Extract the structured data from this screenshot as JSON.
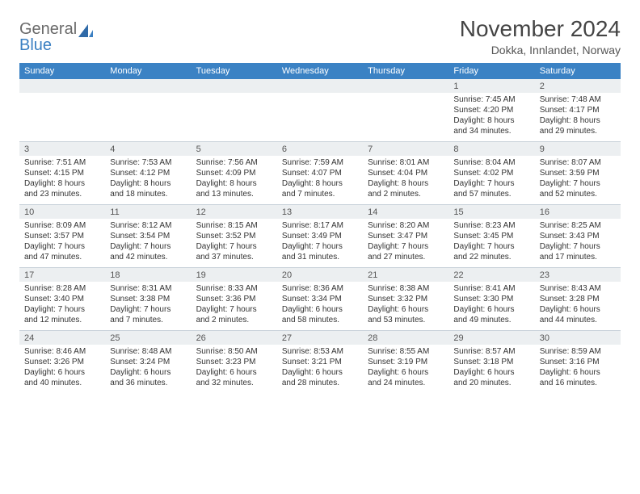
{
  "brand": {
    "word1": "General",
    "word2": "Blue"
  },
  "title": "November 2024",
  "location": "Dokka, Innlandet, Norway",
  "colors": {
    "header_bg": "#3b82c4",
    "header_text": "#ffffff",
    "daynum_bg": "#eceff1",
    "border": "#c9d2da",
    "text": "#333333"
  },
  "weekdays": [
    "Sunday",
    "Monday",
    "Tuesday",
    "Wednesday",
    "Thursday",
    "Friday",
    "Saturday"
  ],
  "weeks": [
    [
      {
        "n": "",
        "sunrise": "",
        "sunset": "",
        "daylight": ""
      },
      {
        "n": "",
        "sunrise": "",
        "sunset": "",
        "daylight": ""
      },
      {
        "n": "",
        "sunrise": "",
        "sunset": "",
        "daylight": ""
      },
      {
        "n": "",
        "sunrise": "",
        "sunset": "",
        "daylight": ""
      },
      {
        "n": "",
        "sunrise": "",
        "sunset": "",
        "daylight": ""
      },
      {
        "n": "1",
        "sunrise": "Sunrise: 7:45 AM",
        "sunset": "Sunset: 4:20 PM",
        "daylight": "Daylight: 8 hours and 34 minutes."
      },
      {
        "n": "2",
        "sunrise": "Sunrise: 7:48 AM",
        "sunset": "Sunset: 4:17 PM",
        "daylight": "Daylight: 8 hours and 29 minutes."
      }
    ],
    [
      {
        "n": "3",
        "sunrise": "Sunrise: 7:51 AM",
        "sunset": "Sunset: 4:15 PM",
        "daylight": "Daylight: 8 hours and 23 minutes."
      },
      {
        "n": "4",
        "sunrise": "Sunrise: 7:53 AM",
        "sunset": "Sunset: 4:12 PM",
        "daylight": "Daylight: 8 hours and 18 minutes."
      },
      {
        "n": "5",
        "sunrise": "Sunrise: 7:56 AM",
        "sunset": "Sunset: 4:09 PM",
        "daylight": "Daylight: 8 hours and 13 minutes."
      },
      {
        "n": "6",
        "sunrise": "Sunrise: 7:59 AM",
        "sunset": "Sunset: 4:07 PM",
        "daylight": "Daylight: 8 hours and 7 minutes."
      },
      {
        "n": "7",
        "sunrise": "Sunrise: 8:01 AM",
        "sunset": "Sunset: 4:04 PM",
        "daylight": "Daylight: 8 hours and 2 minutes."
      },
      {
        "n": "8",
        "sunrise": "Sunrise: 8:04 AM",
        "sunset": "Sunset: 4:02 PM",
        "daylight": "Daylight: 7 hours and 57 minutes."
      },
      {
        "n": "9",
        "sunrise": "Sunrise: 8:07 AM",
        "sunset": "Sunset: 3:59 PM",
        "daylight": "Daylight: 7 hours and 52 minutes."
      }
    ],
    [
      {
        "n": "10",
        "sunrise": "Sunrise: 8:09 AM",
        "sunset": "Sunset: 3:57 PM",
        "daylight": "Daylight: 7 hours and 47 minutes."
      },
      {
        "n": "11",
        "sunrise": "Sunrise: 8:12 AM",
        "sunset": "Sunset: 3:54 PM",
        "daylight": "Daylight: 7 hours and 42 minutes."
      },
      {
        "n": "12",
        "sunrise": "Sunrise: 8:15 AM",
        "sunset": "Sunset: 3:52 PM",
        "daylight": "Daylight: 7 hours and 37 minutes."
      },
      {
        "n": "13",
        "sunrise": "Sunrise: 8:17 AM",
        "sunset": "Sunset: 3:49 PM",
        "daylight": "Daylight: 7 hours and 31 minutes."
      },
      {
        "n": "14",
        "sunrise": "Sunrise: 8:20 AM",
        "sunset": "Sunset: 3:47 PM",
        "daylight": "Daylight: 7 hours and 27 minutes."
      },
      {
        "n": "15",
        "sunrise": "Sunrise: 8:23 AM",
        "sunset": "Sunset: 3:45 PM",
        "daylight": "Daylight: 7 hours and 22 minutes."
      },
      {
        "n": "16",
        "sunrise": "Sunrise: 8:25 AM",
        "sunset": "Sunset: 3:43 PM",
        "daylight": "Daylight: 7 hours and 17 minutes."
      }
    ],
    [
      {
        "n": "17",
        "sunrise": "Sunrise: 8:28 AM",
        "sunset": "Sunset: 3:40 PM",
        "daylight": "Daylight: 7 hours and 12 minutes."
      },
      {
        "n": "18",
        "sunrise": "Sunrise: 8:31 AM",
        "sunset": "Sunset: 3:38 PM",
        "daylight": "Daylight: 7 hours and 7 minutes."
      },
      {
        "n": "19",
        "sunrise": "Sunrise: 8:33 AM",
        "sunset": "Sunset: 3:36 PM",
        "daylight": "Daylight: 7 hours and 2 minutes."
      },
      {
        "n": "20",
        "sunrise": "Sunrise: 8:36 AM",
        "sunset": "Sunset: 3:34 PM",
        "daylight": "Daylight: 6 hours and 58 minutes."
      },
      {
        "n": "21",
        "sunrise": "Sunrise: 8:38 AM",
        "sunset": "Sunset: 3:32 PM",
        "daylight": "Daylight: 6 hours and 53 minutes."
      },
      {
        "n": "22",
        "sunrise": "Sunrise: 8:41 AM",
        "sunset": "Sunset: 3:30 PM",
        "daylight": "Daylight: 6 hours and 49 minutes."
      },
      {
        "n": "23",
        "sunrise": "Sunrise: 8:43 AM",
        "sunset": "Sunset: 3:28 PM",
        "daylight": "Daylight: 6 hours and 44 minutes."
      }
    ],
    [
      {
        "n": "24",
        "sunrise": "Sunrise: 8:46 AM",
        "sunset": "Sunset: 3:26 PM",
        "daylight": "Daylight: 6 hours and 40 minutes."
      },
      {
        "n": "25",
        "sunrise": "Sunrise: 8:48 AM",
        "sunset": "Sunset: 3:24 PM",
        "daylight": "Daylight: 6 hours and 36 minutes."
      },
      {
        "n": "26",
        "sunrise": "Sunrise: 8:50 AM",
        "sunset": "Sunset: 3:23 PM",
        "daylight": "Daylight: 6 hours and 32 minutes."
      },
      {
        "n": "27",
        "sunrise": "Sunrise: 8:53 AM",
        "sunset": "Sunset: 3:21 PM",
        "daylight": "Daylight: 6 hours and 28 minutes."
      },
      {
        "n": "28",
        "sunrise": "Sunrise: 8:55 AM",
        "sunset": "Sunset: 3:19 PM",
        "daylight": "Daylight: 6 hours and 24 minutes."
      },
      {
        "n": "29",
        "sunrise": "Sunrise: 8:57 AM",
        "sunset": "Sunset: 3:18 PM",
        "daylight": "Daylight: 6 hours and 20 minutes."
      },
      {
        "n": "30",
        "sunrise": "Sunrise: 8:59 AM",
        "sunset": "Sunset: 3:16 PM",
        "daylight": "Daylight: 6 hours and 16 minutes."
      }
    ]
  ]
}
